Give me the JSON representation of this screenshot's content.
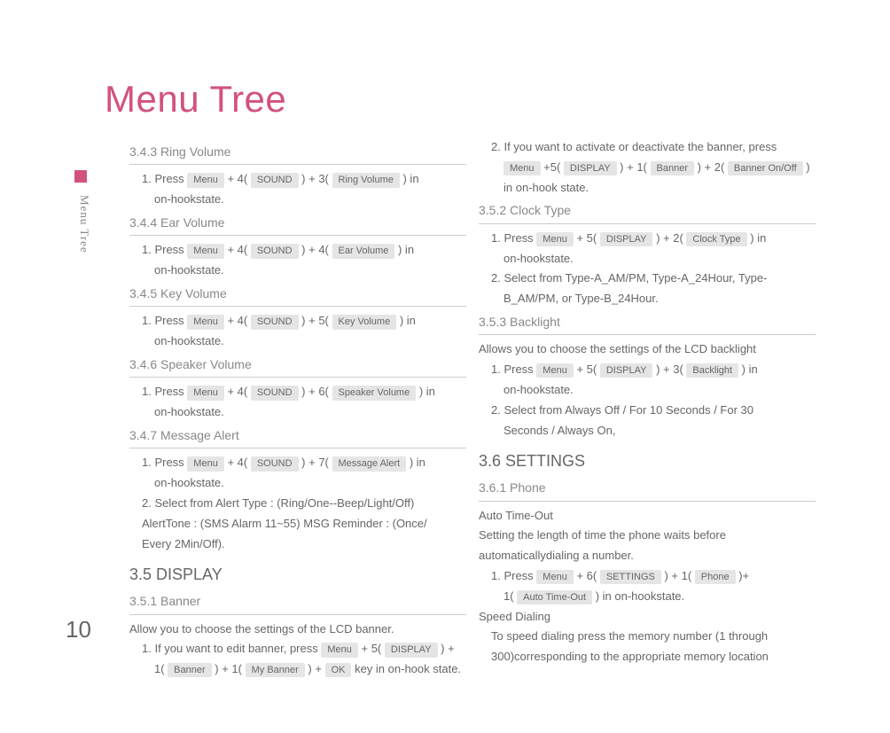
{
  "page_title": "Menu Tree",
  "sidebar_label": "Menu Tree",
  "page_number": "10",
  "colors": {
    "accent": "#d2527f",
    "key_bg": "#e5e5e5",
    "text": "#666",
    "muted": "#888",
    "rule": "#ccc"
  },
  "keys": {
    "menu": "Menu",
    "sound": "SOUND",
    "ring_volume": "Ring Volume",
    "ear_volume": "Ear Volume",
    "key_volume": "Key Volume",
    "speaker_volume": "Speaker Volume",
    "message_alert": "Message Alert",
    "display": "DISPLAY",
    "banner": "Banner",
    "my_banner": "My Banner",
    "ok": "OK",
    "banner_onoff": "Banner On/Off",
    "clock_type": "Clock Type",
    "backlight": "Backlight",
    "settings": "SETTINGS",
    "phone": "Phone",
    "auto_time_out": "Auto Time-Out"
  },
  "left": {
    "s343": {
      "title": "3.4.3  Ring Volume",
      "press": "1. Press ",
      "plus4": " + 4( ",
      "plus3": " ) + 3( ",
      "tail": " ) in",
      "tail2": "on-hookstate."
    },
    "s344": {
      "title": "3.4.4  Ear Volume",
      "press": "1. Press ",
      "plus4a": " + 4( ",
      "plus4b": " ) + 4( ",
      "tail": " ) in",
      "tail2": "on-hookstate."
    },
    "s345": {
      "title": "3.4.5  Key Volume",
      "press": "1. Press ",
      "plus4": " + 4( ",
      "plus5": " ) + 5( ",
      "tail": " ) in",
      "tail2": "on-hookstate."
    },
    "s346": {
      "title": "3.4.6  Speaker Volume",
      "press": "1. Press ",
      "plus4": " + 4( ",
      "plus6": " ) + 6( ",
      "tail": " ) in",
      "tail2": "on-hookstate."
    },
    "s347": {
      "title": "3.4.7  Message Alert",
      "press": "1. Press ",
      "plus4": " + 4( ",
      "plus7": " ) + 7( ",
      "tail": " ) in",
      "tail2": "on-hookstate.",
      "l2a": "2. Select from Alert Type : (Ring/One--Beep/Light/Off)",
      "l2b": "AlertTone : (SMS  Alarm  11~55)   MSG Reminder : (Once/",
      "l2c": "Every  2Min/Off)."
    },
    "s35": {
      "heading": "3.5  DISPLAY"
    },
    "s351": {
      "title": "3.5.1  Banner",
      "intro": "Allow you to choose the settings of the LCD banner.",
      "l1a": "1. If you want to edit banner, press ",
      "l1b": " + 5( ",
      "l1c": " ) +",
      "l2a": "1( ",
      "l2b": " ) + 1( ",
      "l2c": " ) + ",
      "l2d": "  key in on-hook state."
    }
  },
  "right": {
    "banner2": {
      "l1": "2. If you want to activate or deactivate the banner, press",
      "m": " +5( ",
      "p1": " ) + 1( ",
      "p2": " ) + 2( ",
      "tail": " )",
      "last": "in on-hook state."
    },
    "s352": {
      "title": "3.5.2  Clock Type",
      "press": "1. Press ",
      "plus5": " + 5( ",
      "plus2": " ) + 2( ",
      "tail": " ) in",
      "tail2": "on-hookstate.",
      "l2a": "2. Select from Type-A_AM/PM, Type-A_24Hour, Type-",
      "l2b": "B_AM/PM, or Type-B_24Hour."
    },
    "s353": {
      "title": "3.5.3  Backlight",
      "intro": "Allows you to choose the settings of the LCD backlight",
      "press": "1. Press ",
      "plus5": " + 5( ",
      "plus3": " ) + 3( ",
      "tail": " ) in",
      "tail2": "on-hookstate.",
      "l2a": "2. Select from Always Off / For 10 Seconds / For 30",
      "l2b": "Seconds / Always On,"
    },
    "s36": {
      "heading": "3.6  SETTINGS"
    },
    "s361": {
      "title": "3.6.1  Phone",
      "ato": "Auto Time-Out",
      "intro1": "Setting the length of time the phone waits before",
      "intro2": "automaticallydialing a number.",
      "press": "1. Press ",
      "plus6": " + 6( ",
      "plus1": " ) + 1( ",
      "tailplus": " )+",
      "l2a": "1( ",
      "l2b": " ) in on-hookstate.",
      "sd": "Speed Dialing",
      "sd1": "To speed dialing press the memory number (1 through",
      "sd2": "300)corresponding to the appropriate memory location"
    }
  }
}
